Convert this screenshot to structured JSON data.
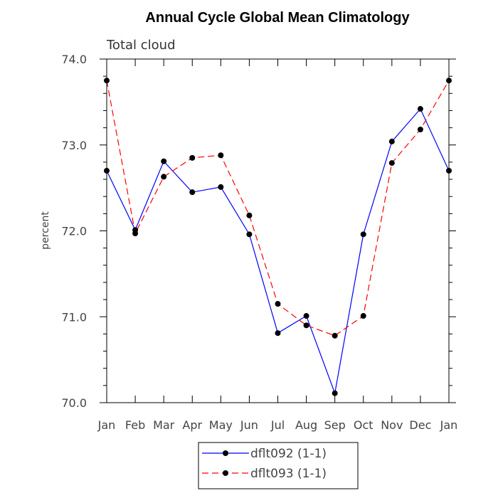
{
  "chart_data": {
    "type": "line",
    "title": "Annual Cycle Global Mean Climatology",
    "subtitle": "Total cloud",
    "xlabel": "",
    "ylabel": "percent",
    "categories": [
      "Jan",
      "Feb",
      "Mar",
      "Apr",
      "May",
      "Jun",
      "Jul",
      "Aug",
      "Sep",
      "Oct",
      "Nov",
      "Dec",
      "Jan"
    ],
    "ylim": [
      70.0,
      74.0
    ],
    "yticks": [
      "70.0",
      "71.0",
      "72.0",
      "73.0",
      "74.0"
    ],
    "series": [
      {
        "name": "dflt092 (1-1)",
        "color": "#0000ff",
        "dash": "solid",
        "values": [
          72.7,
          72.01,
          72.81,
          72.45,
          72.51,
          71.96,
          70.81,
          71.01,
          70.11,
          71.96,
          73.04,
          73.42,
          72.7
        ]
      },
      {
        "name": "dflt093 (1-1)",
        "color": "#ff0000",
        "dash": "dashed",
        "values": [
          73.75,
          71.97,
          72.63,
          72.85,
          72.88,
          72.18,
          71.15,
          70.9,
          70.78,
          71.01,
          72.79,
          73.18,
          73.75
        ]
      }
    ],
    "grid": false,
    "legend_position": "bottom-center"
  }
}
